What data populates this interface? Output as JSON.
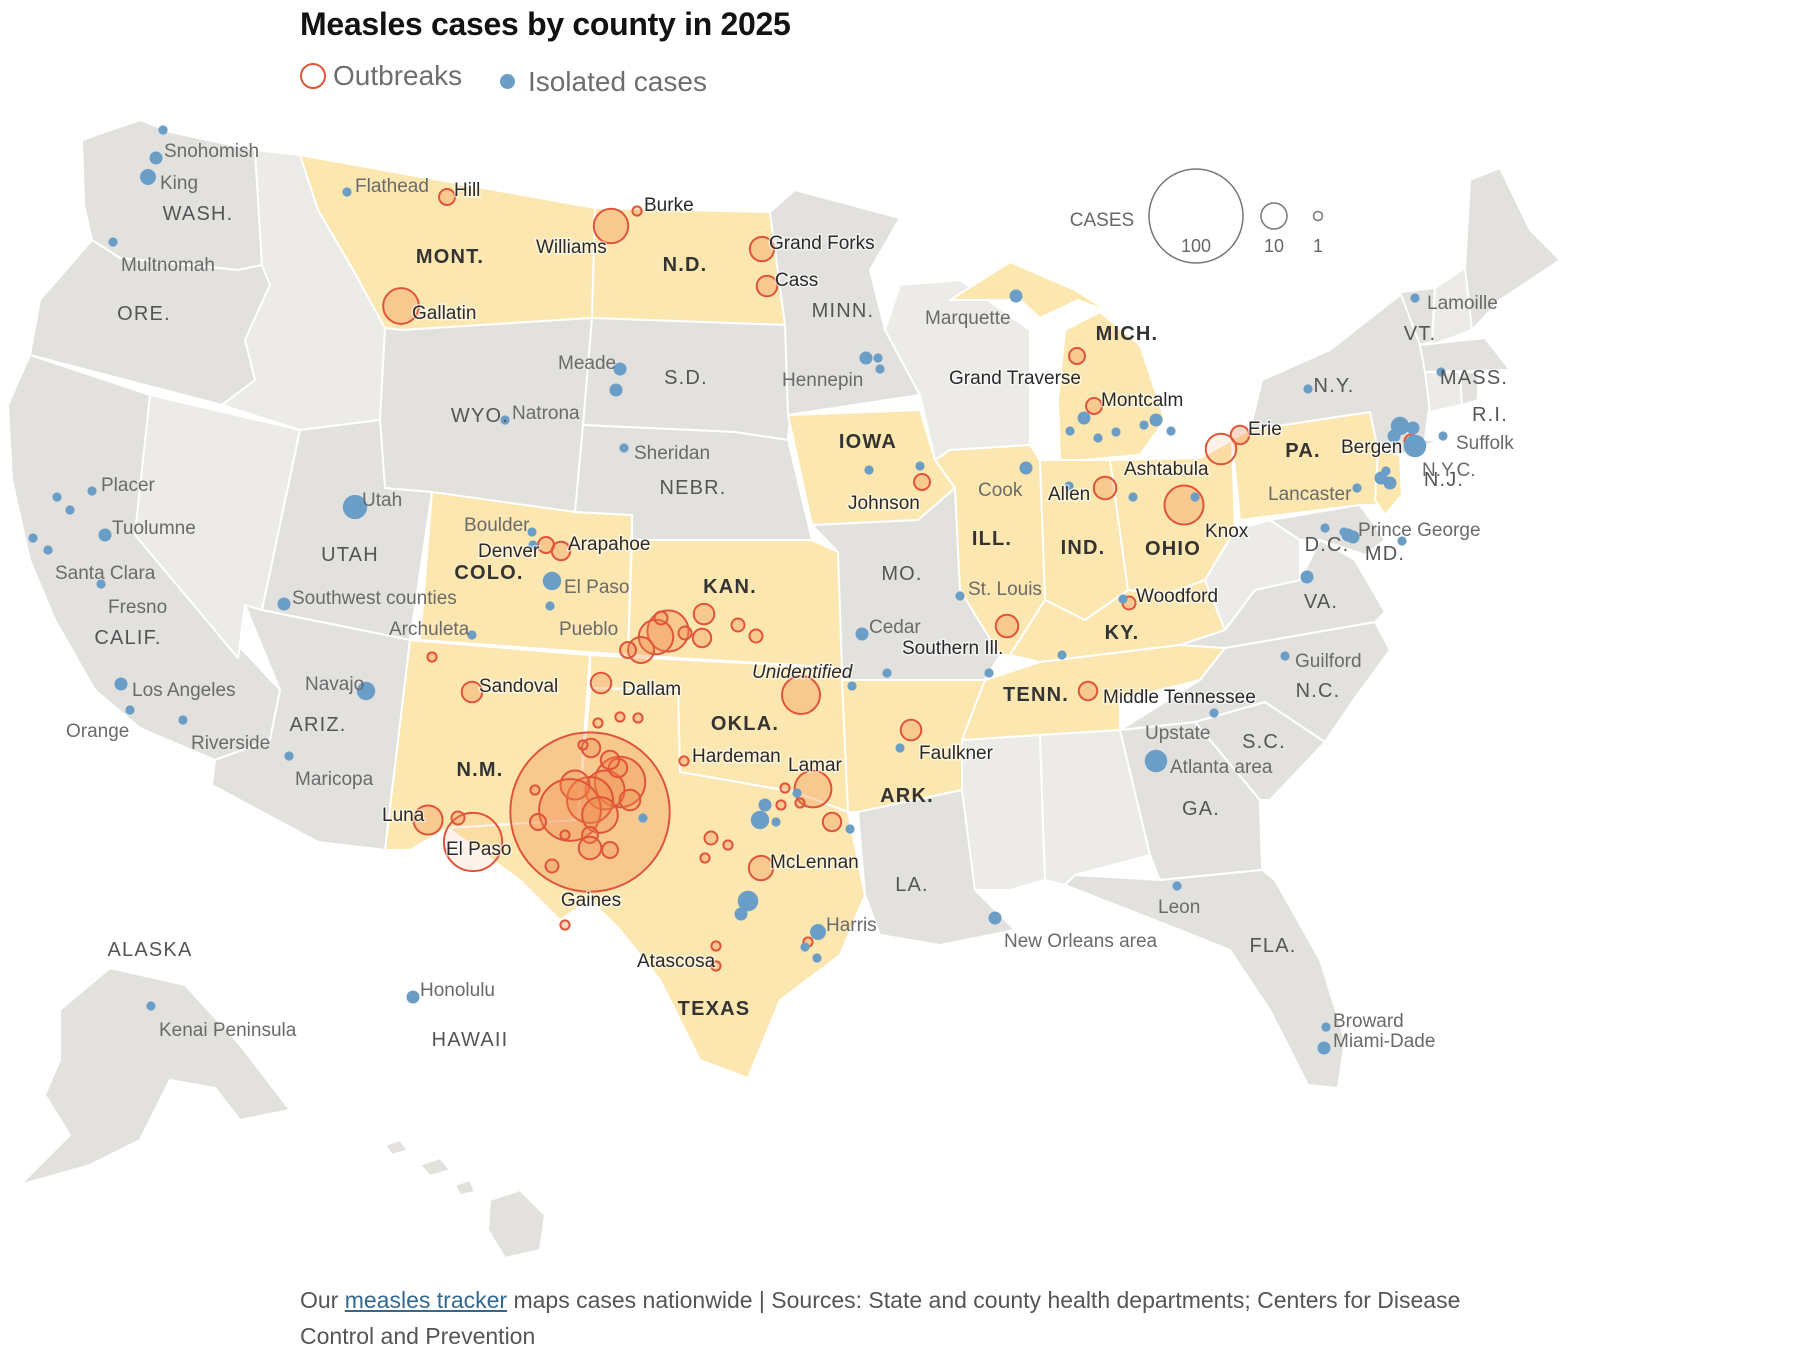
{
  "title": "Measles cases by county in 2025",
  "legend": {
    "outbreaks": "Outbreaks",
    "isolated": "Isolated cases"
  },
  "colors": {
    "outbreak_stroke": "#e0553a",
    "outbreak_fill": "#f08a4b",
    "isolated": "#6a9ec7",
    "outbreak_state": "#fde7b0",
    "other_state": "#e2e1de",
    "alt_state": "#ecebe8",
    "state_border": "#ffffff"
  },
  "size_legend": {
    "label": "CASES",
    "values": [
      "100",
      "10",
      "1"
    ]
  },
  "footer": {
    "prefix": "Our ",
    "link": "measles tracker",
    "suffix": " maps cases nationwide | Sources: State and county health departments; Centers for Disease Control and Prevention"
  },
  "outbreak_states": [
    "MONT.",
    "N.D.",
    "IOWA",
    "MICH.",
    "COLO.",
    "KAN.",
    "ILL.",
    "IND.",
    "OHIO",
    "PA.",
    "N.J.",
    "KY.",
    "TENN.",
    "ARK.",
    "OKLA.",
    "N.M.",
    "TEXAS"
  ],
  "state_labels": [
    {
      "name": "WASH."
    },
    {
      "name": "ORE."
    },
    {
      "name": "CALIF."
    },
    {
      "name": "UTAH"
    },
    {
      "name": "ARIZ."
    },
    {
      "name": "WYO."
    },
    {
      "name": "S.D."
    },
    {
      "name": "NEBR."
    },
    {
      "name": "MINN."
    },
    {
      "name": "MO."
    },
    {
      "name": "LA."
    },
    {
      "name": "GA."
    },
    {
      "name": "FLA."
    },
    {
      "name": "S.C."
    },
    {
      "name": "N.C."
    },
    {
      "name": "VA."
    },
    {
      "name": "MD."
    },
    {
      "name": "D.C."
    },
    {
      "name": "N.Y."
    },
    {
      "name": "VT."
    },
    {
      "name": "MASS."
    },
    {
      "name": "R.I."
    },
    {
      "name": "ALASKA"
    },
    {
      "name": "HAWAII"
    },
    {
      "name": "MONT.",
      "bold": true
    },
    {
      "name": "N.D.",
      "bold": true
    },
    {
      "name": "IOWA",
      "bold": true
    },
    {
      "name": "MICH.",
      "bold": true
    },
    {
      "name": "COLO.",
      "bold": true
    },
    {
      "name": "KAN.",
      "bold": true
    },
    {
      "name": "ILL.",
      "bold": true
    },
    {
      "name": "IND.",
      "bold": true
    },
    {
      "name": "OHIO",
      "bold": true
    },
    {
      "name": "PA.",
      "bold": true
    },
    {
      "name": "N.J."
    },
    {
      "name": "KY.",
      "bold": true
    },
    {
      "name": "TENN.",
      "bold": true
    },
    {
      "name": "ARK.",
      "bold": true
    },
    {
      "name": "OKLA.",
      "bold": true
    },
    {
      "name": "N.M.",
      "bold": true
    },
    {
      "name": "TEXAS",
      "bold": true
    }
  ],
  "outbreak_labels": [
    "Hill",
    "Burke",
    "Williams",
    "Grand Forks",
    "Cass",
    "Gallatin",
    "Grand Traverse",
    "Montcalm",
    "Erie",
    "Bergen",
    "Ashtabula",
    "Allen",
    "Knox",
    "Johnson",
    "Denver",
    "Arapahoe",
    "Woodford",
    "Southern Ill.",
    "Middle Tennessee",
    "Unidentified",
    "Dallam",
    "Sandoval",
    "Hardeman",
    "Lamar",
    "Faulkner",
    "Luna",
    "El Paso",
    "Gaines",
    "McLennan",
    "Atascosa"
  ],
  "isolated_labels": [
    "Snohomish",
    "King",
    "Multnomah",
    "Flathead",
    "Placer",
    "Tuolumne",
    "Santa Clara",
    "Fresno",
    "Los Angeles",
    "Orange",
    "Riverside",
    "Utah",
    "Southwest counties",
    "Navajo",
    "Maricopa",
    "Natrona",
    "Meade",
    "Sheridan",
    "Boulder",
    "El Paso",
    "Pueblo",
    "Archuleta",
    "Marquette",
    "Hennepin",
    "Cook",
    "St. Louis",
    "Cedar",
    "Lamoille",
    "Suffolk",
    "N.Y.C.",
    "Lancaster",
    "Prince George",
    "Guilford",
    "Upstate",
    "Atlanta area",
    "Harris",
    "New Orleans area",
    "Leon",
    "Honolulu",
    "Kenai Peninsula",
    "Broward",
    "Miami-Dade"
  ]
}
